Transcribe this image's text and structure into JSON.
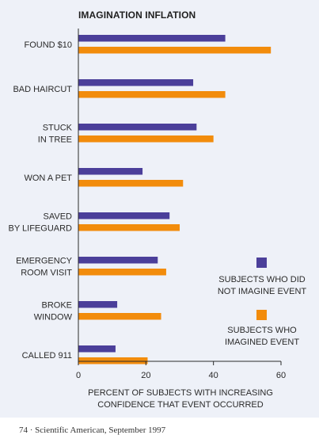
{
  "chart_data": {
    "type": "bar",
    "orientation": "horizontal",
    "title": "IMAGINATION INFLATION",
    "categories": [
      [
        "FOUND $10"
      ],
      [
        "BAD HAIRCUT"
      ],
      [
        "STUCK",
        "IN TREE"
      ],
      [
        "WON A PET"
      ],
      [
        "SAVED",
        "BY LIFEGUARD"
      ],
      [
        "EMERGENCY",
        "ROOM VISIT"
      ],
      [
        "BROKE",
        "WINDOW"
      ],
      [
        "CALLED 911"
      ]
    ],
    "series": [
      {
        "name": [
          "SUBJECTS WHO DID",
          "NOT IMAGINE EVENT"
        ],
        "color": "#4b3f9a",
        "values": [
          43.5,
          34,
          35,
          19,
          27,
          23.5,
          11.5,
          11
        ]
      },
      {
        "name": [
          "SUBJECTS WHO",
          "IMAGINED EVENT"
        ],
        "color": "#f28c0c",
        "values": [
          57,
          43.5,
          40,
          31,
          30,
          26,
          24.5,
          20.5
        ]
      }
    ],
    "xlabel": [
      "PERCENT OF SUBJECTS WITH INCREASING",
      "CONFIDENCE THAT EVENT OCCURRED"
    ],
    "ylabel": "",
    "xlim": [
      0,
      60
    ],
    "xticks": [
      "0",
      "20",
      "40",
      "60"
    ],
    "grid": false,
    "legend": "right"
  },
  "footer": "74 · Scientific American, September 1997"
}
